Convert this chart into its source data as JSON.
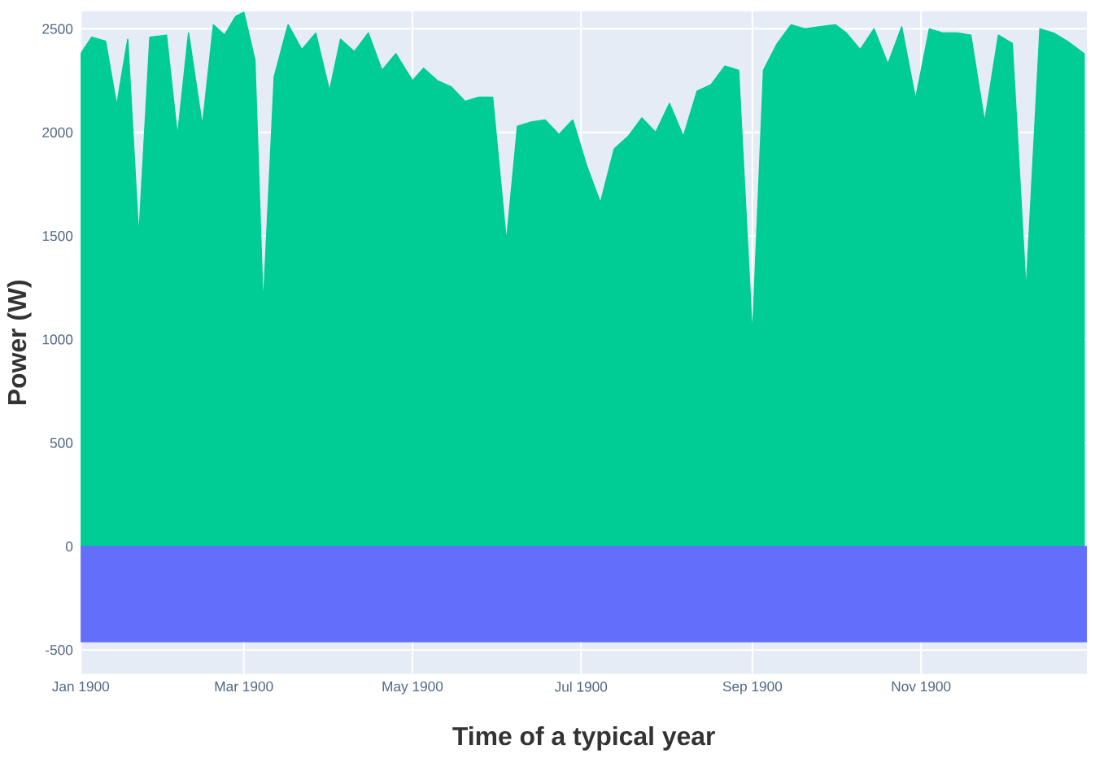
{
  "chart_data": {
    "type": "area",
    "xlabel": "Time of a typical year",
    "ylabel": "Power (W)",
    "xlim": [
      "1900-01-01",
      "1900-12-31"
    ],
    "xticks": [
      {
        "value": "1900-01-01",
        "label": "Jan 1900"
      },
      {
        "value": "1900-03-01",
        "label": "Mar 1900"
      },
      {
        "value": "1900-05-01",
        "label": "May 1900"
      },
      {
        "value": "1900-07-01",
        "label": "Jul 1900"
      },
      {
        "value": "1900-09-01",
        "label": "Sep 1900"
      },
      {
        "value": "1900-11-01",
        "label": "Nov 1900"
      }
    ],
    "ylim": [
      -615,
      2585
    ],
    "yticks": [
      -500,
      0,
      500,
      1000,
      1500,
      2000,
      2500
    ],
    "grid": true,
    "series": [
      {
        "color": "#00cc96",
        "x": [
          "1900-01-01",
          "1900-01-05",
          "1900-01-10",
          "1900-01-14",
          "1900-01-18",
          "1900-01-22",
          "1900-01-26",
          "1900-02-01",
          "1900-02-05",
          "1900-02-09",
          "1900-02-14",
          "1900-02-18",
          "1900-02-22",
          "1900-02-26",
          "1900-03-01",
          "1900-03-05",
          "1900-03-08",
          "1900-03-12",
          "1900-03-17",
          "1900-03-22",
          "1900-03-27",
          "1900-04-01",
          "1900-04-05",
          "1900-04-10",
          "1900-04-15",
          "1900-04-20",
          "1900-04-25",
          "1900-05-01",
          "1900-05-05",
          "1900-05-10",
          "1900-05-15",
          "1900-05-20",
          "1900-05-25",
          "1900-05-30",
          "1900-06-04",
          "1900-06-08",
          "1900-06-13",
          "1900-06-18",
          "1900-06-23",
          "1900-06-28",
          "1900-07-03",
          "1900-07-08",
          "1900-07-13",
          "1900-07-18",
          "1900-07-23",
          "1900-07-28",
          "1900-08-02",
          "1900-08-07",
          "1900-08-12",
          "1900-08-17",
          "1900-08-22",
          "1900-08-27",
          "1900-09-01",
          "1900-09-05",
          "1900-09-10",
          "1900-09-15",
          "1900-09-20",
          "1900-09-25",
          "1900-10-01",
          "1900-10-05",
          "1900-10-10",
          "1900-10-15",
          "1900-10-20",
          "1900-10-25",
          "1900-10-30",
          "1900-11-04",
          "1900-11-09",
          "1900-11-14",
          "1900-11-19",
          "1900-11-24",
          "1900-11-29",
          "1900-12-04",
          "1900-12-09",
          "1900-12-14",
          "1900-12-19",
          "1900-12-24",
          "1900-12-30"
        ],
        "values": [
          2380,
          2460,
          2440,
          2130,
          2450,
          1490,
          2460,
          2470,
          1980,
          2480,
          2030,
          2520,
          2470,
          2560,
          2580,
          2350,
          1150,
          2270,
          2520,
          2400,
          2480,
          2200,
          2450,
          2390,
          2480,
          2300,
          2380,
          2250,
          2310,
          2250,
          2220,
          2150,
          2170,
          2170,
          1470,
          2030,
          2050,
          2060,
          1990,
          2060,
          1840,
          1660,
          1920,
          1980,
          2070,
          2000,
          2140,
          1980,
          2200,
          2230,
          2320,
          2300,
          1010,
          2300,
          2430,
          2520,
          2500,
          2510,
          2520,
          2480,
          2400,
          2500,
          2330,
          2510,
          2160,
          2500,
          2480,
          2480,
          2470,
          2050,
          2470,
          2430,
          1230,
          2500,
          2480,
          2440,
          2380
        ]
      },
      {
        "color": "#636efa",
        "x": [
          "1900-01-01",
          "1900-12-31"
        ],
        "values": [
          -460,
          -460
        ]
      }
    ]
  }
}
